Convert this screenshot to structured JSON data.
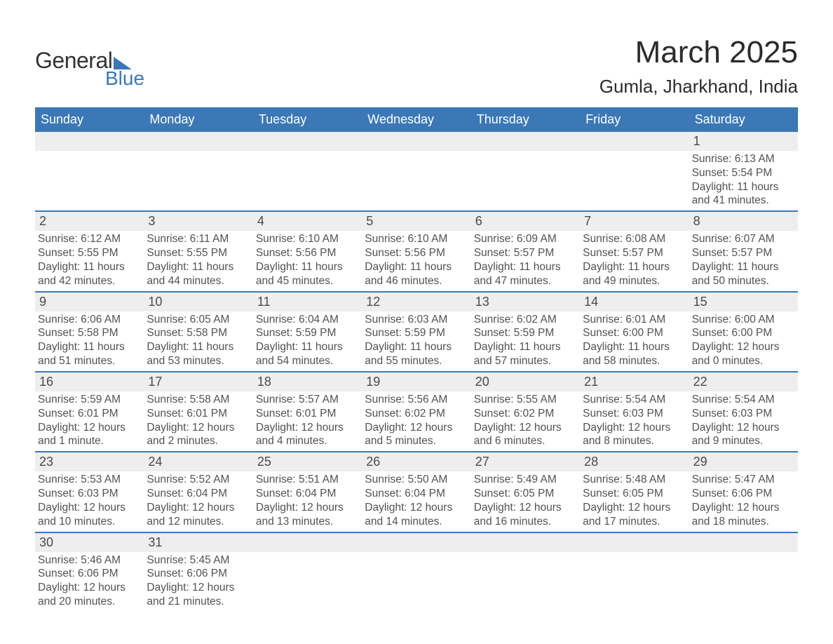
{
  "logo": {
    "line1": "General",
    "line2": "Blue"
  },
  "header": {
    "month": "March 2025",
    "location": "Gumla, Jharkhand, India"
  },
  "colors": {
    "accent": "#3b78b5",
    "header_bg": "#3b78b5",
    "header_text": "#ffffff",
    "daybar_bg": "#eeeeee",
    "text": "#3a3a3a",
    "row_border": "#3b78b5",
    "page_bg": "#ffffff"
  },
  "typography": {
    "title_fontsize_pt": 33,
    "location_fontsize_pt": 20,
    "dow_fontsize_pt": 14,
    "daynum_fontsize_pt": 14,
    "body_fontsize_pt": 12,
    "font_family": "Arial"
  },
  "layout": {
    "columns": 7,
    "rows": 6,
    "aspect_ratio": "1188:918"
  },
  "days_of_week": [
    "Sunday",
    "Monday",
    "Tuesday",
    "Wednesday",
    "Thursday",
    "Friday",
    "Saturday"
  ],
  "labels": {
    "sunrise": "Sunrise:",
    "sunset": "Sunset:",
    "daylight": "Daylight:"
  },
  "weeks": [
    [
      {
        "n": "",
        "sunrise": "",
        "sunset": "",
        "daylight": ""
      },
      {
        "n": "",
        "sunrise": "",
        "sunset": "",
        "daylight": ""
      },
      {
        "n": "",
        "sunrise": "",
        "sunset": "",
        "daylight": ""
      },
      {
        "n": "",
        "sunrise": "",
        "sunset": "",
        "daylight": ""
      },
      {
        "n": "",
        "sunrise": "",
        "sunset": "",
        "daylight": ""
      },
      {
        "n": "",
        "sunrise": "",
        "sunset": "",
        "daylight": ""
      },
      {
        "n": "1",
        "sunrise": "6:13 AM",
        "sunset": "5:54 PM",
        "daylight": "11 hours and 41 minutes."
      }
    ],
    [
      {
        "n": "2",
        "sunrise": "6:12 AM",
        "sunset": "5:55 PM",
        "daylight": "11 hours and 42 minutes."
      },
      {
        "n": "3",
        "sunrise": "6:11 AM",
        "sunset": "5:55 PM",
        "daylight": "11 hours and 44 minutes."
      },
      {
        "n": "4",
        "sunrise": "6:10 AM",
        "sunset": "5:56 PM",
        "daylight": "11 hours and 45 minutes."
      },
      {
        "n": "5",
        "sunrise": "6:10 AM",
        "sunset": "5:56 PM",
        "daylight": "11 hours and 46 minutes."
      },
      {
        "n": "6",
        "sunrise": "6:09 AM",
        "sunset": "5:57 PM",
        "daylight": "11 hours and 47 minutes."
      },
      {
        "n": "7",
        "sunrise": "6:08 AM",
        "sunset": "5:57 PM",
        "daylight": "11 hours and 49 minutes."
      },
      {
        "n": "8",
        "sunrise": "6:07 AM",
        "sunset": "5:57 PM",
        "daylight": "11 hours and 50 minutes."
      }
    ],
    [
      {
        "n": "9",
        "sunrise": "6:06 AM",
        "sunset": "5:58 PM",
        "daylight": "11 hours and 51 minutes."
      },
      {
        "n": "10",
        "sunrise": "6:05 AM",
        "sunset": "5:58 PM",
        "daylight": "11 hours and 53 minutes."
      },
      {
        "n": "11",
        "sunrise": "6:04 AM",
        "sunset": "5:59 PM",
        "daylight": "11 hours and 54 minutes."
      },
      {
        "n": "12",
        "sunrise": "6:03 AM",
        "sunset": "5:59 PM",
        "daylight": "11 hours and 55 minutes."
      },
      {
        "n": "13",
        "sunrise": "6:02 AM",
        "sunset": "5:59 PM",
        "daylight": "11 hours and 57 minutes."
      },
      {
        "n": "14",
        "sunrise": "6:01 AM",
        "sunset": "6:00 PM",
        "daylight": "11 hours and 58 minutes."
      },
      {
        "n": "15",
        "sunrise": "6:00 AM",
        "sunset": "6:00 PM",
        "daylight": "12 hours and 0 minutes."
      }
    ],
    [
      {
        "n": "16",
        "sunrise": "5:59 AM",
        "sunset": "6:01 PM",
        "daylight": "12 hours and 1 minute."
      },
      {
        "n": "17",
        "sunrise": "5:58 AM",
        "sunset": "6:01 PM",
        "daylight": "12 hours and 2 minutes."
      },
      {
        "n": "18",
        "sunrise": "5:57 AM",
        "sunset": "6:01 PM",
        "daylight": "12 hours and 4 minutes."
      },
      {
        "n": "19",
        "sunrise": "5:56 AM",
        "sunset": "6:02 PM",
        "daylight": "12 hours and 5 minutes."
      },
      {
        "n": "20",
        "sunrise": "5:55 AM",
        "sunset": "6:02 PM",
        "daylight": "12 hours and 6 minutes."
      },
      {
        "n": "21",
        "sunrise": "5:54 AM",
        "sunset": "6:03 PM",
        "daylight": "12 hours and 8 minutes."
      },
      {
        "n": "22",
        "sunrise": "5:54 AM",
        "sunset": "6:03 PM",
        "daylight": "12 hours and 9 minutes."
      }
    ],
    [
      {
        "n": "23",
        "sunrise": "5:53 AM",
        "sunset": "6:03 PM",
        "daylight": "12 hours and 10 minutes."
      },
      {
        "n": "24",
        "sunrise": "5:52 AM",
        "sunset": "6:04 PM",
        "daylight": "12 hours and 12 minutes."
      },
      {
        "n": "25",
        "sunrise": "5:51 AM",
        "sunset": "6:04 PM",
        "daylight": "12 hours and 13 minutes."
      },
      {
        "n": "26",
        "sunrise": "5:50 AM",
        "sunset": "6:04 PM",
        "daylight": "12 hours and 14 minutes."
      },
      {
        "n": "27",
        "sunrise": "5:49 AM",
        "sunset": "6:05 PM",
        "daylight": "12 hours and 16 minutes."
      },
      {
        "n": "28",
        "sunrise": "5:48 AM",
        "sunset": "6:05 PM",
        "daylight": "12 hours and 17 minutes."
      },
      {
        "n": "29",
        "sunrise": "5:47 AM",
        "sunset": "6:06 PM",
        "daylight": "12 hours and 18 minutes."
      }
    ],
    [
      {
        "n": "30",
        "sunrise": "5:46 AM",
        "sunset": "6:06 PM",
        "daylight": "12 hours and 20 minutes."
      },
      {
        "n": "31",
        "sunrise": "5:45 AM",
        "sunset": "6:06 PM",
        "daylight": "12 hours and 21 minutes."
      },
      {
        "n": "",
        "sunrise": "",
        "sunset": "",
        "daylight": ""
      },
      {
        "n": "",
        "sunrise": "",
        "sunset": "",
        "daylight": ""
      },
      {
        "n": "",
        "sunrise": "",
        "sunset": "",
        "daylight": ""
      },
      {
        "n": "",
        "sunrise": "",
        "sunset": "",
        "daylight": ""
      },
      {
        "n": "",
        "sunrise": "",
        "sunset": "",
        "daylight": ""
      }
    ]
  ]
}
